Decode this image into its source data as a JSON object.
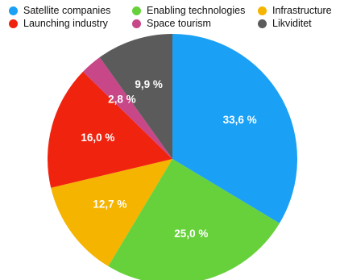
{
  "chart_data": {
    "type": "pie",
    "legend_placement": "top",
    "slices": [
      {
        "name": "Satellite companies",
        "value": 33.6,
        "label": "33,6 %",
        "color": "#1aa0f5"
      },
      {
        "name": "Enabling technologies",
        "value": 25.0,
        "label": "25,0 %",
        "color": "#66d13b"
      },
      {
        "name": "Infrastructure",
        "value": 12.7,
        "label": "12,7 %",
        "color": "#f5b400"
      },
      {
        "name": "Launching industry",
        "value": 16.0,
        "label": "16,0 %",
        "color": "#f0230f"
      },
      {
        "name": "Space tourism",
        "value": 2.8,
        "label": "2,8 %",
        "color": "#c74788"
      },
      {
        "name": "Likviditet",
        "value": 9.9,
        "label": "9,9 %",
        "color": "#5b5b5b"
      }
    ]
  }
}
